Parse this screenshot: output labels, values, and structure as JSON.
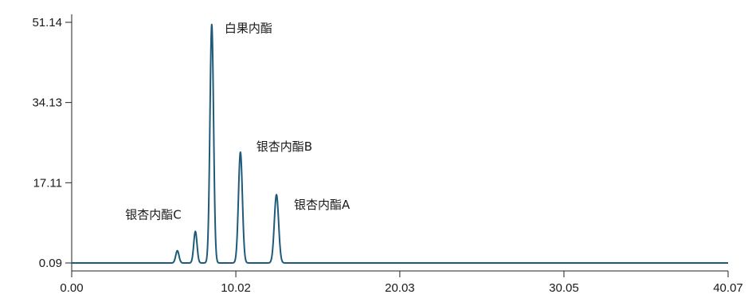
{
  "chart_data": {
    "type": "line",
    "title": "",
    "xlabel": "",
    "ylabel": "",
    "xlim": [
      0.0,
      40.07
    ],
    "ylim": [
      0.09,
      51.14
    ],
    "x_ticks": [
      "0.00",
      "10.02",
      "20.03",
      "30.05",
      "40.07"
    ],
    "y_ticks": [
      "0.09",
      "17.11",
      "34.13",
      "51.14"
    ],
    "baseline": 0.09,
    "grid": false,
    "legend": "none",
    "line_color": "#1f5a7a",
    "peaks": [
      {
        "x": 6.45,
        "height": 2.6,
        "sigma": 0.1,
        "label": ""
      },
      {
        "x": 7.55,
        "height": 6.7,
        "sigma": 0.1,
        "label": "银杏内酯C"
      },
      {
        "x": 8.55,
        "height": 50.6,
        "sigma": 0.11,
        "label": "白果内酯"
      },
      {
        "x": 10.3,
        "height": 23.5,
        "sigma": 0.12,
        "label": "银杏内酯B"
      },
      {
        "x": 12.5,
        "height": 14.5,
        "sigma": 0.13,
        "label": "银杏内酯A"
      }
    ]
  }
}
